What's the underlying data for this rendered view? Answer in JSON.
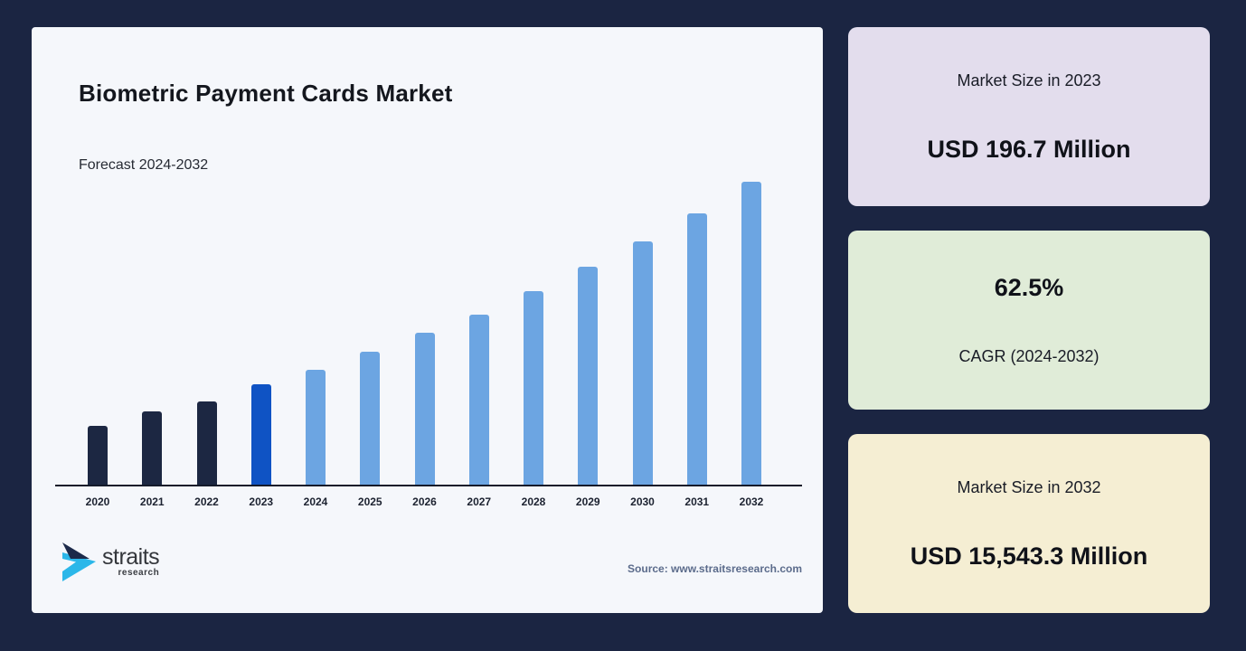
{
  "panel": {
    "title": "Biometric Payment Cards Market",
    "subtitle": "Forecast 2024-2032",
    "source": "Source: www.straitsresearch.com",
    "logo": {
      "name": "straits",
      "sub": "research"
    }
  },
  "chart_data": {
    "type": "bar",
    "title": "Biometric Payment Cards Market",
    "xlabel": "",
    "ylabel": "",
    "grid": false,
    "legend": false,
    "y_axis_shown": false,
    "categories": [
      "2020",
      "2021",
      "2022",
      "2023",
      "2024",
      "2025",
      "2026",
      "2027",
      "2028",
      "2029",
      "2030",
      "2031",
      "2032"
    ],
    "values": [
      65,
      81,
      92,
      111,
      127,
      147,
      168,
      188,
      214,
      241,
      269,
      300,
      335
    ],
    "values_note": "illustrative bar heights in px; no y-axis scale shown",
    "bar_colors": [
      "#1c2742",
      "#1c2742",
      "#1c2742",
      "#0f53c4",
      "#6ca5e2",
      "#6ca5e2",
      "#6ca5e2",
      "#6ca5e2",
      "#6ca5e2",
      "#6ca5e2",
      "#6ca5e2",
      "#6ca5e2",
      "#6ca5e2"
    ],
    "annotations": {
      "market_size_2023_usd_million": 196.7,
      "market_size_2032_usd_million": 15543.3,
      "cagr_2024_2032_percent": 62.5
    }
  },
  "cards": [
    {
      "label": "Market Size in 2023",
      "value": "USD 196.7 Million",
      "bg": "#e3dded"
    },
    {
      "value": "62.5%",
      "label": "CAGR (2024-2032)",
      "bg": "#e0ecd8"
    },
    {
      "label": "Market Size in 2032",
      "value": "USD 15,543.3 Million",
      "bg": "#f5eed3"
    }
  ],
  "colors": {
    "page_background": "#1b2542",
    "panel_background": "#f5f7fb",
    "historical_bar": "#1c2742",
    "base_year_bar": "#0f53c4",
    "forecast_bar": "#6ca5e2",
    "axis_line": "#141a2a",
    "logo_cyan": "#2bb7e9",
    "logo_navy": "#1c2a4a"
  }
}
